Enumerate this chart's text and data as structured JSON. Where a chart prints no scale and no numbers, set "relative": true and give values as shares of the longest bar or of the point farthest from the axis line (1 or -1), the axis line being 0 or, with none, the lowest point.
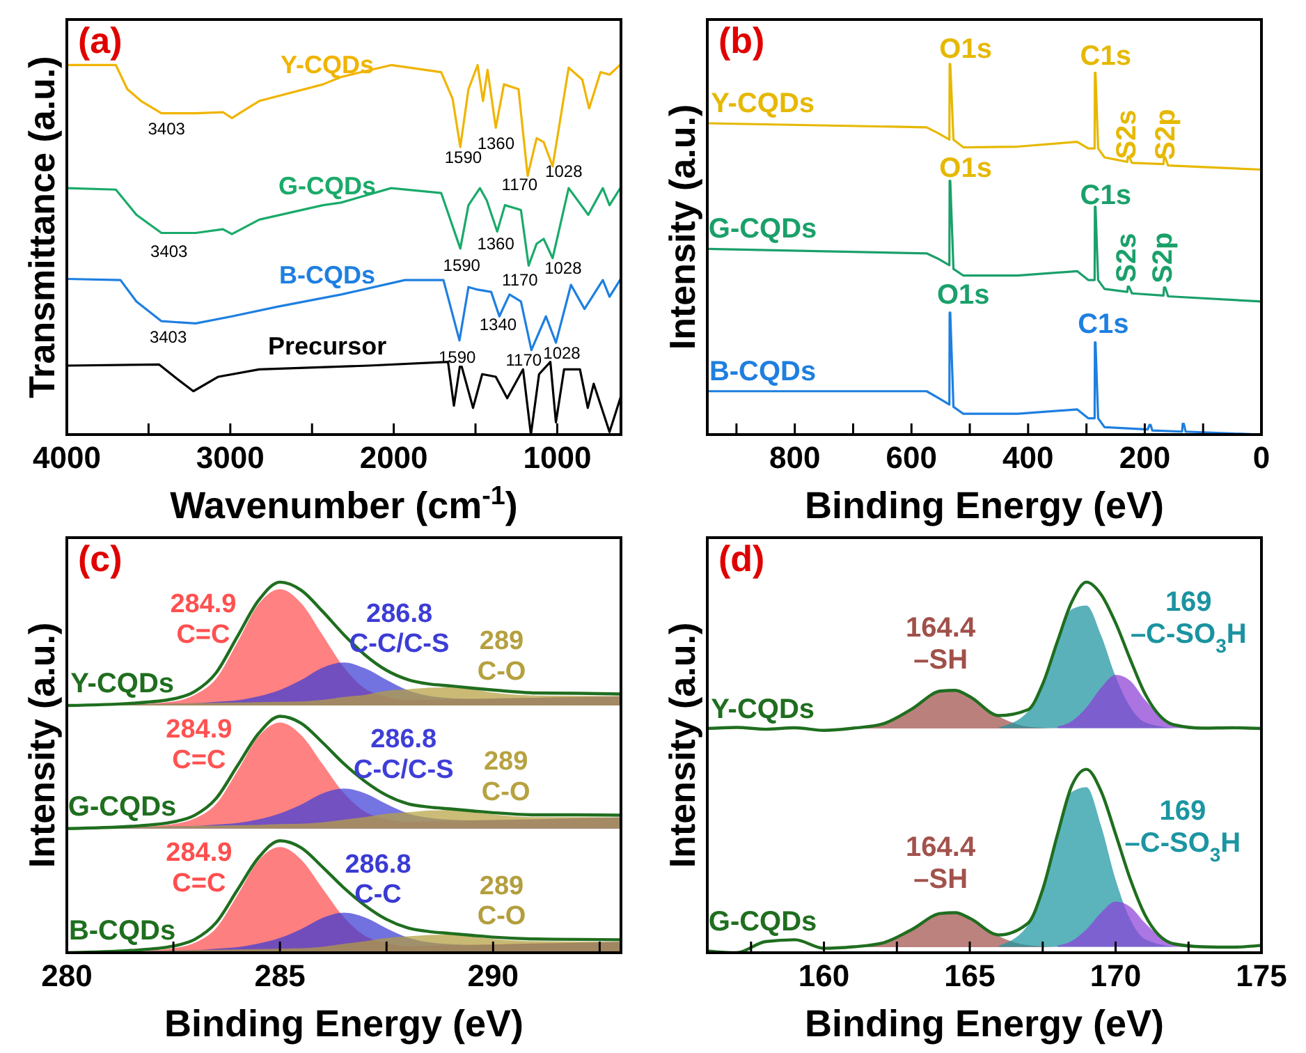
{
  "chart_data": [
    {
      "type": "line",
      "title": "(a)",
      "xlabel": "Wavenumber (cm$^{-1}$)",
      "ylabel": "Transmittance (a.u.)",
      "relative": true,
      "xlim": [
        4000,
        610
      ],
      "xticks": [
        4000,
        {
          "value": 3500,
          "label": null
        },
        3000,
        {
          "value": 2500,
          "label": null
        },
        2000,
        {
          "value": 1500,
          "label": null
        },
        1000
      ],
      "series": [
        {
          "name": "Y-CQDs",
          "color": "#f0b400",
          "x": [
            4000,
            3700,
            3630,
            3546,
            3421,
            3212,
            3045,
            2990,
            2934,
            2823,
            2433,
            2322,
            2016,
            1710,
            1640,
            1593,
            1543,
            1487,
            1454,
            1426,
            1376,
            1326,
            1237,
            1181,
            1126,
            1083,
            1028,
            930,
            847,
            805,
            735,
            680,
            610
          ],
          "values": [
            0.997,
            0.997,
            0.932,
            0.9,
            0.867,
            0.867,
            0.87,
            0.854,
            0.87,
            0.9,
            0.945,
            0.965,
            0.997,
            0.978,
            0.906,
            0.776,
            0.932,
            0.997,
            0.9,
            0.984,
            0.828,
            0.945,
            0.932,
            0.698,
            0.8,
            0.789,
            0.724,
            0.99,
            0.958,
            0.88,
            0.978,
            0.971,
            1.0
          ]
        },
        {
          "name": "G-CQDs",
          "color": "#1aaa6a",
          "x": [
            4000,
            3700,
            3574,
            3421,
            3212,
            3045,
            2990,
            2823,
            2433,
            2322,
            2016,
            1710,
            1593,
            1543,
            1473,
            1431,
            1367,
            1320,
            1222,
            1175,
            1126,
            1083,
            1028,
            930,
            810,
            721,
            680,
            610
          ],
          "values": [
            0.665,
            0.661,
            0.593,
            0.544,
            0.544,
            0.554,
            0.541,
            0.58,
            0.619,
            0.626,
            0.665,
            0.652,
            0.502,
            0.619,
            0.665,
            0.632,
            0.548,
            0.619,
            0.606,
            0.456,
            0.515,
            0.528,
            0.476,
            0.665,
            0.593,
            0.665,
            0.619,
            0.668
          ]
        },
        {
          "name": "B-CQDs",
          "color": "#1e7fe0",
          "x": [
            4000,
            3672,
            3574,
            3421,
            3212,
            2990,
            2711,
            2322,
            1932,
            1696,
            1598,
            1543,
            1487,
            1404,
            1354,
            1292,
            1222,
            1158,
            1069,
            1008,
            916,
            833,
            721,
            680,
            610
          ],
          "values": [
            0.42,
            0.417,
            0.359,
            0.306,
            0.3,
            0.319,
            0.345,
            0.378,
            0.417,
            0.417,
            0.254,
            0.398,
            0.391,
            0.385,
            0.319,
            0.378,
            0.359,
            0.228,
            0.319,
            0.248,
            0.404,
            0.339,
            0.417,
            0.372,
            0.421
          ]
        },
        {
          "name": "Precursor",
          "color": "#000000",
          "x": [
            4000,
            3435,
            3324,
            3226,
            3073,
            2823,
            2155,
            1668,
            1632,
            1596,
            1584,
            1515,
            1459,
            1376,
            1306,
            1209,
            1161,
            1111,
            1042,
            1008,
            958,
            861,
            813,
            777,
            680,
            610
          ],
          "values": [
            0.186,
            0.189,
            0.15,
            0.117,
            0.156,
            0.176,
            0.186,
            0.196,
            0.078,
            0.183,
            0.183,
            0.072,
            0.163,
            0.156,
            0.098,
            0.176,
            0,
            0.163,
            0.196,
            0.033,
            0.176,
            0.176,
            0.072,
            0.137,
            0.007,
            0.104
          ]
        }
      ],
      "annotations": [
        "3403",
        "1590",
        "1360",
        "1170",
        "1028",
        "3403",
        "1590",
        "1360",
        "1170",
        "1028",
        "3403",
        "1590",
        "1340",
        "1170",
        "1028"
      ]
    },
    {
      "type": "line",
      "title": "(b)",
      "xlabel": "Binding Energy (eV)",
      "ylabel": "Intensity (a.u.)",
      "relative": true,
      "xlim": [
        950,
        0
      ],
      "xticks": [
        {
          "value": 900,
          "label": null
        },
        800,
        {
          "value": 700,
          "label": null
        },
        600,
        {
          "value": 500,
          "label": null
        },
        400,
        {
          "value": 300,
          "label": null
        },
        200,
        {
          "value": 100,
          "label": null
        },
        0
      ],
      "series": [
        {
          "name": "Y-CQDs",
          "color": "#e6b800",
          "x": [
            950,
            574,
            555,
            535,
            534.5,
            533.5,
            528,
            511,
            418,
            316,
            297,
            286,
            285.5,
            284.5,
            280,
            269,
            230,
            229,
            227,
            222,
            168,
            167,
            165,
            160,
            0
          ],
          "values": [
            0.84,
            0.829,
            0.814,
            0.796,
            1.0,
            1.0,
            0.796,
            0.775,
            0.777,
            0.79,
            0.772,
            0.772,
            0.976,
            0.976,
            0.772,
            0.748,
            0.736,
            0.75,
            0.75,
            0.733,
            0.73,
            0.748,
            0.748,
            0.726,
            0.715
          ]
        },
        {
          "name": "G-CQDs",
          "color": "#1aa06a",
          "x": [
            950,
            574,
            555,
            535,
            534.5,
            533.5,
            528,
            511,
            418,
            316,
            297,
            286,
            285.5,
            284.5,
            280,
            269,
            230,
            229,
            227,
            222,
            168,
            167,
            165,
            160,
            0
          ],
          "values": [
            0.501,
            0.489,
            0.475,
            0.457,
            0.685,
            0.685,
            0.447,
            0.429,
            0.429,
            0.441,
            0.417,
            0.417,
            0.615,
            0.615,
            0.417,
            0.393,
            0.385,
            0.399,
            0.399,
            0.381,
            0.375,
            0.397,
            0.397,
            0.373,
            0.359
          ]
        },
        {
          "name": "B-CQDs",
          "color": "#1e7fe0",
          "x": [
            950,
            574,
            555,
            535,
            534.5,
            533.5,
            528,
            511,
            418,
            316,
            297,
            286,
            285.5,
            284.5,
            280,
            269,
            195,
            192,
            190,
            187,
            136,
            135,
            133,
            130,
            0
          ],
          "values": [
            0.117,
            0.117,
            0.1,
            0.081,
            0.329,
            0.329,
            0.075,
            0.056,
            0.056,
            0.068,
            0.044,
            0.044,
            0.249,
            0.249,
            0.044,
            0.02,
            0.014,
            0.026,
            0.026,
            0.011,
            0.008,
            0.029,
            0.029,
            0.008,
            0
          ]
        }
      ],
      "annotations": [
        "O1s",
        "C1s",
        "S2s",
        "S2p",
        "O1s",
        "C1s",
        "S2s",
        "S2p",
        "O1s",
        "C1s"
      ]
    },
    {
      "type": "line",
      "title": "(c)",
      "xlabel": "Binding Energy (eV)",
      "ylabel": "Intensity (a.u.)",
      "relative": true,
      "xlim": [
        280,
        293
      ],
      "xticks": [
        280,
        {
          "value": 282.5,
          "label": null
        },
        285,
        {
          "value": 287.5,
          "label": null
        },
        290,
        {
          "value": 292.5,
          "label": null
        }
      ],
      "x": [
        280,
        281.5,
        282.5,
        283,
        283.5,
        284,
        284.5,
        285,
        285.5,
        286,
        286.5,
        287,
        287.5,
        288,
        288.5,
        289,
        289.5,
        290,
        291,
        292,
        293
      ],
      "series": [
        {
          "name": "Y-CQDs",
          "color": "#1f6e1f",
          "values": [
            0.667,
            0.673,
            0.685,
            0.705,
            0.755,
            0.853,
            0.951,
            1.0,
            0.978,
            0.921,
            0.858,
            0.803,
            0.762,
            0.737,
            0.725,
            0.72,
            0.714,
            0.709,
            0.701,
            0.7,
            0.698
          ]
        },
        {
          "type": "area",
          "color": "#ff5050",
          "values": [
            0.667,
            0.67,
            0.678,
            0.696,
            0.739,
            0.837,
            0.941,
            0.981,
            0.943,
            0.857,
            0.77,
            0.712,
            0.691,
            0.682,
            0.683,
            0.684,
            0.685,
            0.686,
            0.688,
            0.69,
            0.692
          ]
        },
        {
          "type": "area",
          "color": "#3c3cd6",
          "values": [
            0.667,
            0.67,
            0.672,
            0.673,
            0.677,
            0.681,
            0.692,
            0.709,
            0.736,
            0.769,
            0.783,
            0.767,
            0.736,
            0.708,
            0.693,
            0.687,
            0.685,
            0.686,
            0.688,
            0.69,
            0.692
          ]
        },
        {
          "type": "area",
          "color": "#b5a040",
          "values": [
            0.667,
            0.67,
            0.672,
            0.673,
            0.674,
            0.675,
            0.676,
            0.677,
            0.678,
            0.682,
            0.69,
            0.696,
            0.707,
            0.711,
            0.715,
            0.716,
            0.711,
            0.702,
            0.694,
            0.693,
            0.692
          ]
        },
        {
          "name": "G-CQDs",
          "color": "#1f6e1f",
          "values": [
            0.335,
            0.341,
            0.353,
            0.371,
            0.416,
            0.504,
            0.592,
            0.638,
            0.619,
            0.567,
            0.51,
            0.462,
            0.425,
            0.402,
            0.393,
            0.388,
            0.383,
            0.378,
            0.372,
            0.372,
            0.371
          ]
        },
        {
          "type": "area",
          "color": "#ff5252",
          "values": [
            0.335,
            0.338,
            0.347,
            0.362,
            0.401,
            0.49,
            0.584,
            0.621,
            0.587,
            0.509,
            0.431,
            0.38,
            0.361,
            0.353,
            0.355,
            0.356,
            0.357,
            0.358,
            0.36,
            0.363,
            0.365
          ]
        },
        {
          "type": "area",
          "color": "#3e3ed8",
          "values": [
            0.335,
            0.338,
            0.341,
            0.342,
            0.346,
            0.35,
            0.36,
            0.376,
            0.4,
            0.43,
            0.443,
            0.43,
            0.401,
            0.376,
            0.364,
            0.359,
            0.357,
            0.358,
            0.36,
            0.363,
            0.365
          ]
        },
        {
          "type": "area",
          "color": "#b7a242",
          "values": [
            0.335,
            0.338,
            0.341,
            0.342,
            0.343,
            0.344,
            0.345,
            0.347,
            0.348,
            0.352,
            0.359,
            0.366,
            0.375,
            0.379,
            0.384,
            0.385,
            0.38,
            0.373,
            0.366,
            0.366,
            0.365
          ]
        },
        {
          "name": "B-CQDs",
          "color": "#1f6e1f",
          "values": [
            0,
            0.006,
            0.018,
            0.036,
            0.081,
            0.169,
            0.257,
            0.302,
            0.283,
            0.231,
            0.175,
            0.127,
            0.09,
            0.067,
            0.057,
            0.052,
            0.047,
            0.042,
            0.037,
            0.036,
            0.035
          ]
        },
        {
          "type": "area",
          "color": "#fe4e4e",
          "values": [
            0,
            0.003,
            0.012,
            0.027,
            0.066,
            0.155,
            0.249,
            0.285,
            0.251,
            0.173,
            0.096,
            0.045,
            0.026,
            0.018,
            0.019,
            0.02,
            0.021,
            0.022,
            0.025,
            0.027,
            0.029
          ]
        },
        {
          "type": "area",
          "color": "#3a3ad4",
          "values": [
            0,
            0.003,
            0.006,
            0.007,
            0.011,
            0.015,
            0.025,
            0.04,
            0.064,
            0.094,
            0.108,
            0.095,
            0.066,
            0.041,
            0.028,
            0.023,
            0.021,
            0.022,
            0.025,
            0.027,
            0.029
          ]
        },
        {
          "type": "area",
          "color": "#b39e3e",
          "values": [
            0,
            0.003,
            0.006,
            0.007,
            0.008,
            0.009,
            0.01,
            0.011,
            0.012,
            0.016,
            0.024,
            0.031,
            0.04,
            0.044,
            0.048,
            0.049,
            0.044,
            0.037,
            0.031,
            0.03,
            0.029
          ]
        }
      ],
      "annotations": [
        "284.9\nC=C",
        "286.8\nC-C/C-S",
        "289\nC-O",
        "284.9\nC=C",
        "286.8\nC-C/C-S",
        "289\nC-O",
        "284.9\nC=C",
        "286.8\nC-C",
        "289\nC-O"
      ]
    },
    {
      "type": "line",
      "title": "(d)",
      "xlabel": "Binding Energy (eV)",
      "ylabel": "Intensity (a.u.)",
      "relative": true,
      "xlim": [
        156,
        175
      ],
      "xticks": [
        {
          "value": 157.5,
          "label": null
        },
        160,
        {
          "value": 162.5,
          "label": null
        },
        165,
        {
          "value": 167.5,
          "label": null
        },
        170,
        {
          "value": 172.5,
          "label": null
        },
        175
      ],
      "x": [
        156,
        157,
        158,
        159,
        160,
        161,
        162,
        163,
        164,
        164.5,
        165,
        166,
        167,
        167.5,
        168,
        168.5,
        169,
        169.5,
        170,
        170.5,
        171,
        172,
        173,
        174,
        175
      ],
      "series": [
        {
          "name": "Y-CQDs",
          "color": "#1f6e1f",
          "values": [
            0.605,
            0.608,
            0.603,
            0.607,
            0.6,
            0.606,
            0.617,
            0.657,
            0.706,
            0.708,
            0.691,
            0.64,
            0.656,
            0.725,
            0.839,
            0.947,
            1.0,
            0.967,
            0.89,
            0.792,
            0.7,
            0.615,
            0.606,
            0.607,
            0.605
          ]
        },
        {
          "type": "area",
          "color": "#a0504a",
          "x": [
            161,
            162,
            163,
            164,
            164.5,
            165,
            166,
            167,
            168
          ],
          "values": [
            0.605,
            0.617,
            0.657,
            0.706,
            0.708,
            0.691,
            0.637,
            0.61,
            0.605
          ]
        },
        {
          "type": "area",
          "color": "#1a93a0",
          "x": [
            166,
            167,
            167.5,
            168,
            168.5,
            169,
            169.5,
            170,
            170.5,
            171,
            172
          ],
          "values": [
            0.608,
            0.651,
            0.725,
            0.834,
            0.927,
            0.937,
            0.857,
            0.745,
            0.663,
            0.622,
            0.606
          ]
        },
        {
          "type": "area",
          "color": "#8a3fd6",
          "x": [
            168,
            168.5,
            169,
            169.5,
            170,
            170.5,
            171,
            172,
            173
          ],
          "values": [
            0.61,
            0.625,
            0.662,
            0.715,
            0.75,
            0.734,
            0.683,
            0.614,
            0.606
          ]
        },
        {
          "name": "G-CQDs",
          "color": "#1f6e1f",
          "values": [
            0.005,
            0,
            0.03,
            0.035,
            0.012,
            0.016,
            0.026,
            0.062,
            0.106,
            0.108,
            0.093,
            0.048,
            0.08,
            0.171,
            0.317,
            0.451,
            0.495,
            0.436,
            0.32,
            0.199,
            0.103,
            0.024,
            0.016,
            0.015,
            0.02
          ]
        },
        {
          "type": "area",
          "color": "#a2524c",
          "x": [
            161,
            162,
            163,
            164,
            164.5,
            165,
            166,
            167,
            168
          ],
          "values": [
            0.016,
            0.026,
            0.062,
            0.106,
            0.108,
            0.093,
            0.044,
            0.02,
            0.015
          ]
        },
        {
          "type": "area",
          "color": "#1c95a2",
          "x": [
            166,
            167,
            167.5,
            168,
            168.5,
            169,
            169.5,
            170,
            170.5,
            171,
            172
          ],
          "values": [
            0.019,
            0.075,
            0.171,
            0.313,
            0.434,
            0.447,
            0.343,
            0.197,
            0.09,
            0.037,
            0.016
          ]
        },
        {
          "type": "area",
          "color": "#8c41d8",
          "x": [
            168,
            168.5,
            169,
            169.5,
            170,
            170.5,
            171,
            172,
            173
          ],
          "values": [
            0.019,
            0.032,
            0.063,
            0.108,
            0.138,
            0.124,
            0.081,
            0.023,
            0.016
          ]
        }
      ],
      "annotations": [
        "164.4\n–SH",
        "169\n–C-SO$_{3}$H",
        "164.4\n–SH",
        "169\n–C-SO$_{3}$H"
      ]
    }
  ]
}
